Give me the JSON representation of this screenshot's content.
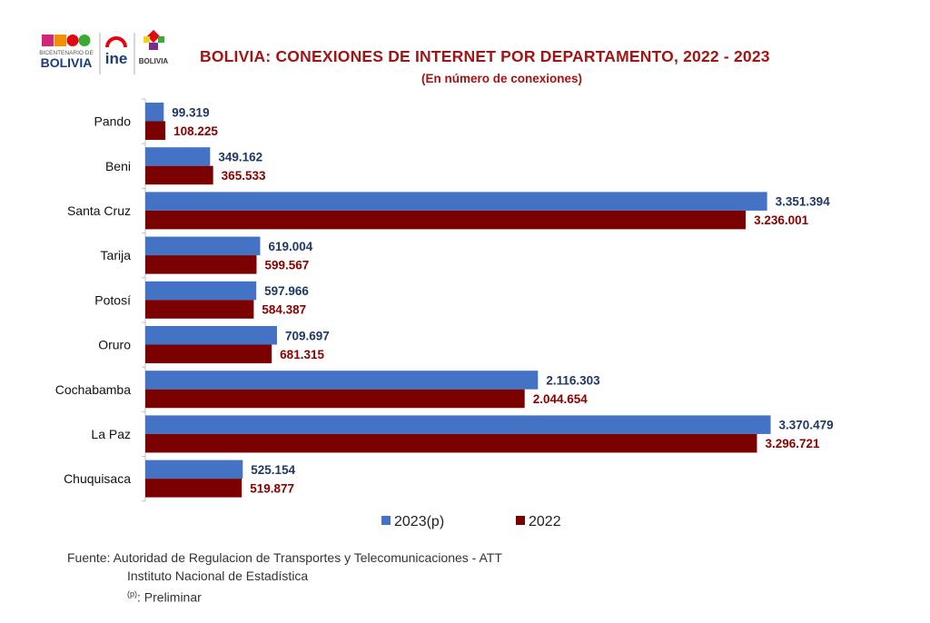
{
  "header": {
    "title": "BOLIVIA: CONEXIONES DE INTERNET POR DEPARTAMENTO, 2022 - 2023",
    "subtitle": "(En número de conexiones)",
    "logo_bicentenario_line1": "BICENTENARIO DE",
    "logo_bicentenario_line2": "BOLIVIA",
    "logo_ine": "ine",
    "logo_estado": "BOLIVIA"
  },
  "chart_data": {
    "type": "bar",
    "orientation": "horizontal",
    "categories": [
      "Pando",
      "Beni",
      "Santa Cruz",
      "Tarija",
      "Potosí",
      "Oruro",
      "Cochabamba",
      "La Paz",
      "Chuquisaca"
    ],
    "series": [
      {
        "name": "2023(p)",
        "color": "#4472c4",
        "label_color": "#1f3864",
        "values": [
          99319,
          349162,
          3351394,
          619004,
          597966,
          709697,
          2116303,
          3370479,
          525154
        ],
        "labels": [
          "99.319",
          "349.162",
          "3.351.394",
          "619.004",
          "597.966",
          "709.697",
          "2.116.303",
          "3.370.479",
          "525.154"
        ]
      },
      {
        "name": "2022",
        "color": "#7b0000",
        "label_color": "#8b0000",
        "values": [
          108225,
          365533,
          3236001,
          599567,
          584387,
          681315,
          2044654,
          3296721,
          519877
        ],
        "labels": [
          "108.225",
          "365.533",
          "3.236.001",
          "599.567",
          "584.387",
          "681.315",
          "2.044.654",
          "3.296.721",
          "519.877"
        ]
      }
    ],
    "title": "BOLIVIA: CONEXIONES DE INTERNET POR DEPARTAMENTO, 2022 - 2023",
    "subtitle": "(En número de conexiones)",
    "xlim": [
      0,
      3500000
    ],
    "grid": false,
    "legend": "bottom"
  },
  "legend": {
    "items": [
      {
        "label": "2023(p)",
        "color": "#4472c4"
      },
      {
        "label": "2022",
        "color": "#7b0000"
      }
    ]
  },
  "source": {
    "line1": "Fuente: Autoridad de Regulacion de Transportes y Telecomunicaciones - ATT",
    "line2": "Instituto Nacional de Estadística",
    "line3_sup": "(p)",
    "line3_text": ": Preliminar"
  }
}
